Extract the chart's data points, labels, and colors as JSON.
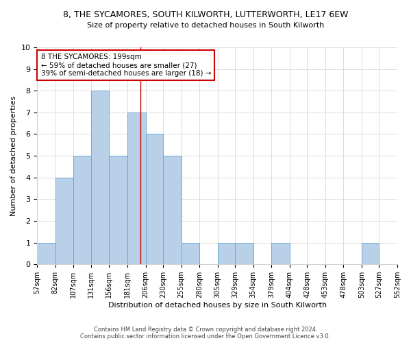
{
  "title": "8, THE SYCAMORES, SOUTH KILWORTH, LUTTERWORTH, LE17 6EW",
  "subtitle": "Size of property relative to detached houses in South Kilworth",
  "xlabel": "Distribution of detached houses by size in South Kilworth",
  "ylabel": "Number of detached properties",
  "footer_line1": "Contains HM Land Registry data © Crown copyright and database right 2024.",
  "footer_line2": "Contains public sector information licensed under the Open Government Licence v3.0.",
  "bin_edges": [
    57,
    82,
    107,
    131,
    156,
    181,
    206,
    230,
    255,
    280,
    305,
    329,
    354,
    379,
    404,
    428,
    453,
    478,
    503,
    527,
    552
  ],
  "bar_heights": [
    1,
    4,
    5,
    8,
    5,
    7,
    6,
    5,
    1,
    0,
    1,
    1,
    0,
    1,
    0,
    0,
    0,
    0,
    1,
    0
  ],
  "bar_color": "#b8d0e8",
  "bar_edgecolor": "#6aaad4",
  "vline_x": 199,
  "vline_color": "#cc0000",
  "ylim": [
    0,
    10
  ],
  "yticks": [
    0,
    1,
    2,
    3,
    4,
    5,
    6,
    7,
    8,
    9,
    10
  ],
  "annotation_text": "8 THE SYCAMORES: 199sqm\n← 59% of detached houses are smaller (27)\n39% of semi-detached houses are larger (18) →",
  "annotation_box_edgecolor": "#cc0000",
  "bg_color": "#ffffff",
  "grid_color": "#d0d0d0"
}
